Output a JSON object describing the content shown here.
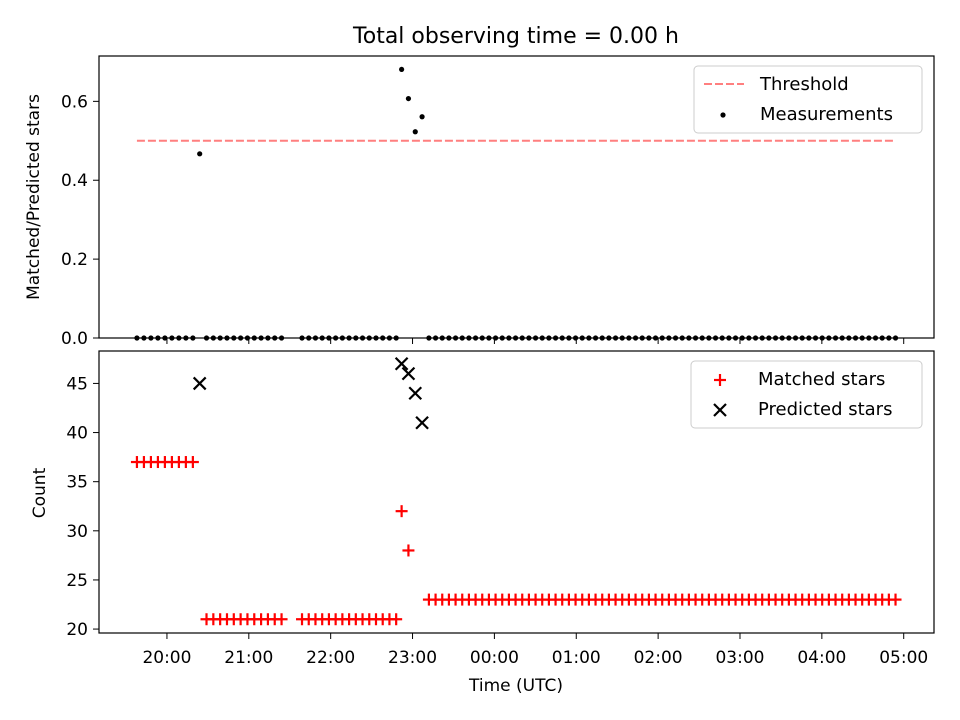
{
  "figure": {
    "title": "Total observing time = 0.00 h",
    "xlabel": "Time (UTC)",
    "xticks": [
      "20:00",
      "21:00",
      "22:00",
      "23:00",
      "00:00",
      "01:00",
      "02:00",
      "03:00",
      "04:00",
      "05:00"
    ],
    "xrange_hours": [
      19.17,
      29.37
    ]
  },
  "chart_data": [
    {
      "type": "scatter",
      "ylabel": "Matched/Predicted stars",
      "ylim": [
        0,
        0.715
      ],
      "yticks": [
        "0.0",
        "0.2",
        "0.4",
        "0.6"
      ],
      "legend_position": "upper right",
      "threshold": {
        "name": "Threshold",
        "value": 0.5,
        "x_start": "19:38",
        "x_end": "04:54",
        "color": "#ff7f7f",
        "style": "dashed"
      },
      "series": [
        {
          "name": "Measurements",
          "color": "#000000",
          "marker": "dot",
          "points": [
            {
              "time": "20:24",
              "value": 0.467
            },
            {
              "time": "22:52",
              "value": 0.681
            },
            {
              "time": "22:57",
              "value": 0.607
            },
            {
              "time": "23:02",
              "value": 0.523
            },
            {
              "time": "23:07",
              "value": 0.561
            }
          ],
          "zero_runs": [
            {
              "start": "19:38",
              "end": "20:19",
              "count": 9
            },
            {
              "start": "20:29",
              "end": "21:24",
              "count": 12
            },
            {
              "start": "21:39",
              "end": "22:48",
              "count": 15
            },
            {
              "start": "23:12",
              "end": "04:54",
              "count": 71
            }
          ]
        }
      ]
    },
    {
      "type": "scatter",
      "ylabel": "Count",
      "ylim": [
        19.6,
        48.3
      ],
      "yticks": [
        "20",
        "25",
        "30",
        "35",
        "40",
        "45"
      ],
      "legend_position": "upper right",
      "series": [
        {
          "name": "Matched stars",
          "color": "#ff0000",
          "marker": "plus",
          "runs": [
            {
              "start": "19:38",
              "end": "20:19",
              "count": 9,
              "value": 37
            },
            {
              "start": "20:29",
              "end": "21:24",
              "count": 12,
              "value": 21
            },
            {
              "start": "21:39",
              "end": "22:48",
              "count": 15,
              "value": 21
            },
            {
              "start": "23:12",
              "end": "04:54",
              "count": 71,
              "value": 23
            }
          ],
          "points": [
            {
              "time": "22:52",
              "value": 32
            },
            {
              "time": "22:57",
              "value": 28
            }
          ]
        },
        {
          "name": "Predicted stars",
          "color": "#000000",
          "marker": "x",
          "points": [
            {
              "time": "20:24",
              "value": 45
            },
            {
              "time": "22:52",
              "value": 47
            },
            {
              "time": "22:57",
              "value": 46
            },
            {
              "time": "23:02",
              "value": 44
            },
            {
              "time": "23:07",
              "value": 41
            }
          ]
        }
      ]
    }
  ]
}
